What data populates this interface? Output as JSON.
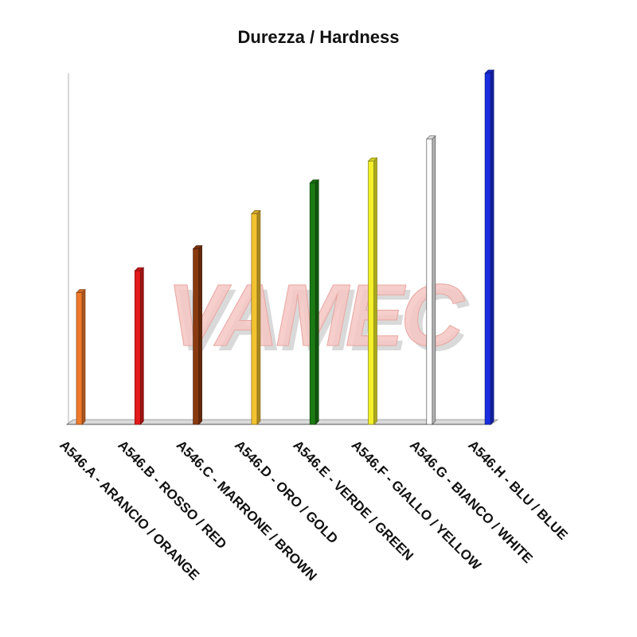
{
  "watermark": "VAMEC",
  "chart_data": {
    "type": "bar",
    "title": "Durezza / Hardness",
    "xlabel": "",
    "ylabel": "",
    "ylim": [
      0,
      8
    ],
    "grid": false,
    "legend": "none",
    "categories": [
      "A546.A - ARANCIO / ORANGE",
      "A546.B - ROSSO / RED",
      "A546.C - MARRONE / BROWN",
      "A546.D - ORO / GOLD",
      "A546.E - VERDE / GREEN",
      "A546.F - GIALLO / YELLOW",
      "A546.G - BIANCO / WHITE",
      "A546.H - BLU / BLUE"
    ],
    "values": [
      3.0,
      3.5,
      4.0,
      4.8,
      5.5,
      6.0,
      6.5,
      8.0
    ],
    "colors": [
      "#f07a2a",
      "#e21b1b",
      "#8b3a10",
      "#f2c230",
      "#1c7a14",
      "#f3f02a",
      "#ffffff",
      "#1a2ee0"
    ]
  }
}
